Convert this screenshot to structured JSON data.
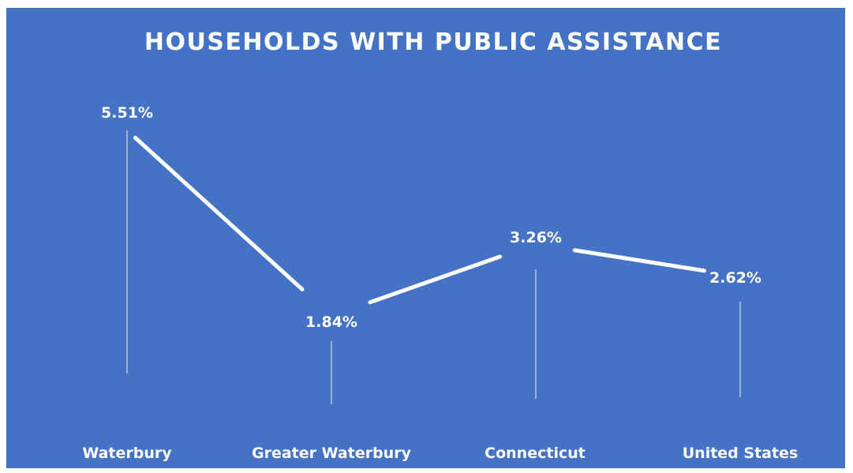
{
  "chart_data": {
    "type": "line",
    "title": "HOUSEHOLDS WITH PUBLIC ASSISTANCE",
    "categories": [
      "Waterbury",
      "Greater Waterbury",
      "Connecticut",
      "United States"
    ],
    "values": [
      5.51,
      1.84,
      3.26,
      2.62
    ],
    "data_labels": [
      "5.51%",
      "1.84%",
      "3.26%",
      "2.62%"
    ],
    "unit": "%",
    "drop_lines": true,
    "grid": false,
    "legend": "none",
    "colors": {
      "background": "#4472c4",
      "line": "#ffffff",
      "text": "#ffffff"
    }
  }
}
